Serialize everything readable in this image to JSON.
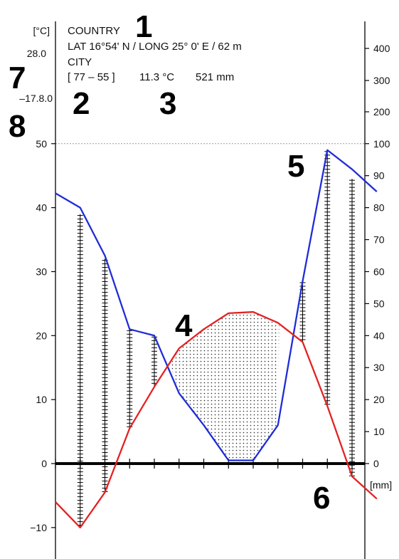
{
  "chart_data": {
    "type": "climate-diagram",
    "header": {
      "country": "COUNTRY",
      "location": "LAT 16°54' N  /  LONG 25° 0' E  /  62 m",
      "city": "CITY",
      "years": "[ 77 – 55 ]",
      "mean_temp": "11.3 °C",
      "annual_precip": "521 mm"
    },
    "left_axis": {
      "unit": "[°C]",
      "max_temp_label": "28.0",
      "min_temp_label": "–17.8.0",
      "ticks": [
        "50",
        "40",
        "30",
        "20",
        "10",
        "0",
        "−10"
      ],
      "tick_values": [
        50,
        40,
        30,
        20,
        10,
        0,
        -10
      ],
      "range": [
        -15,
        50
      ]
    },
    "right_axis": {
      "unit": "[mm]",
      "ticks": [
        "400",
        "300",
        "200",
        "100",
        "90",
        "80",
        "70",
        "60",
        "50",
        "40",
        "30",
        "20",
        "10",
        "0"
      ],
      "tick_values": [
        400,
        300,
        200,
        100,
        90,
        80,
        70,
        60,
        50,
        40,
        30,
        20,
        10,
        0
      ],
      "note": "0–100 mm scaled 2 mm per °C; above 100 mm compressed"
    },
    "months": 12,
    "temperature": {
      "color": "#e32222",
      "values": [
        -6,
        -10,
        -4.5,
        5.5,
        12,
        18,
        21,
        23.5,
        23.7,
        22,
        19,
        9,
        -2,
        -5.5
      ]
    },
    "precipitation": {
      "color": "#1f2cd6",
      "values": [
        84.5,
        80,
        65,
        42,
        40,
        22,
        12,
        1,
        1,
        12,
        57,
        98,
        92,
        85
      ]
    },
    "hatched_bars": [
      {
        "month": 1,
        "top_mm": 78,
        "bottom_c": -10
      },
      {
        "month": 2,
        "top_mm": 64,
        "bottom_c": -4.5
      },
      {
        "month": 3,
        "top_mm": 42,
        "bottom_c": 5.5
      },
      {
        "month": 4,
        "top_mm": 40,
        "bottom_c": 12
      },
      {
        "month": 10,
        "top_mm": 57,
        "bottom_c": 19
      },
      {
        "month": 11,
        "top_mm": 98,
        "bottom_c": 9
      },
      {
        "month": 12,
        "top_mm": 89,
        "bottom_c": -2
      }
    ],
    "callouts": [
      "1",
      "2",
      "3",
      "4",
      "5",
      "6",
      "7",
      "8"
    ]
  }
}
